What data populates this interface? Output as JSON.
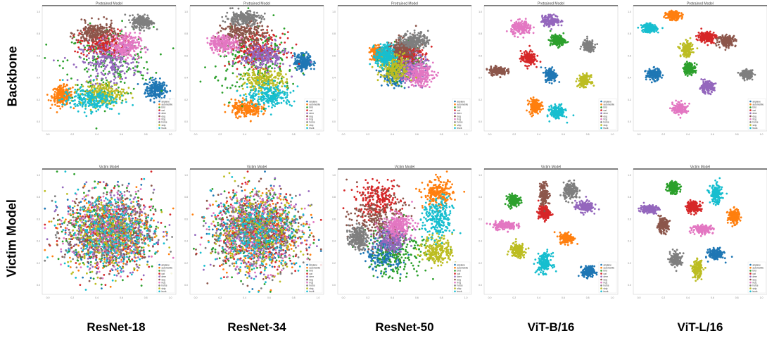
{
  "figure": {
    "row_labels": [
      "Backbone",
      "Victim Model"
    ],
    "column_labels": [
      "ResNet-18",
      "ResNet-34",
      "ResNet-50",
      "ViT-B/16",
      "ViT-L/16"
    ]
  },
  "legend": {
    "classes": [
      "airplane",
      "automobile",
      "bird",
      "cat",
      "deer",
      "dog",
      "frog",
      "horse",
      "ship",
      "truck"
    ],
    "colors": [
      "#1f77b4",
      "#ff7f0e",
      "#2ca02c",
      "#d62728",
      "#9467bd",
      "#8c564b",
      "#e377c2",
      "#7f7f7f",
      "#bcbd22",
      "#17becf"
    ]
  },
  "chart_data": [
    {
      "type": "scatter",
      "row": "Backbone",
      "model": "ResNet-18",
      "title": "Pretrained Model",
      "layout": "mixed",
      "x_ticks": [
        "0.0",
        "0.2",
        "0.4",
        "0.6",
        "0.8",
        "1.0"
      ],
      "y_ticks": [
        "0.0",
        "0.2",
        "0.4",
        "0.6",
        "0.8",
        "1.0"
      ],
      "clusters": [
        {
          "class": "airplane",
          "cx": 0.85,
          "cy": 0.33,
          "sx": 0.07,
          "sy": 0.07
        },
        {
          "class": "automobile",
          "cx": 0.15,
          "cy": 0.28,
          "sx": 0.07,
          "sy": 0.07
        },
        {
          "class": "bird",
          "cx": 0.5,
          "cy": 0.55,
          "sx": 0.3,
          "sy": 0.25
        },
        {
          "class": "cat",
          "cx": 0.45,
          "cy": 0.7,
          "sx": 0.15,
          "sy": 0.1
        },
        {
          "class": "deer",
          "cx": 0.5,
          "cy": 0.55,
          "sx": 0.2,
          "sy": 0.15
        },
        {
          "class": "dog",
          "cx": 0.4,
          "cy": 0.78,
          "sx": 0.13,
          "sy": 0.08
        },
        {
          "class": "frog",
          "cx": 0.62,
          "cy": 0.68,
          "sx": 0.1,
          "sy": 0.09
        },
        {
          "class": "horse",
          "cx": 0.75,
          "cy": 0.87,
          "sx": 0.07,
          "sy": 0.05
        },
        {
          "class": "ship",
          "cx": 0.45,
          "cy": 0.3,
          "sx": 0.15,
          "sy": 0.08
        },
        {
          "class": "truck",
          "cx": 0.35,
          "cy": 0.25,
          "sx": 0.18,
          "sy": 0.08
        }
      ]
    },
    {
      "type": "scatter",
      "row": "Backbone",
      "model": "ResNet-34",
      "title": "Pretrained Model",
      "layout": "mixed",
      "x_ticks": [
        "0.0",
        "0.2",
        "0.4",
        "0.6",
        "0.8",
        "1.0"
      ],
      "y_ticks": [
        "0.0",
        "0.2",
        "0.4",
        "0.6",
        "0.8",
        "1.0"
      ],
      "clusters": [
        {
          "class": "airplane",
          "cx": 0.85,
          "cy": 0.55,
          "sx": 0.06,
          "sy": 0.06
        },
        {
          "class": "automobile",
          "cx": 0.42,
          "cy": 0.18,
          "sx": 0.1,
          "sy": 0.06
        },
        {
          "class": "bird",
          "cx": 0.5,
          "cy": 0.55,
          "sx": 0.28,
          "sy": 0.25
        },
        {
          "class": "cat",
          "cx": 0.5,
          "cy": 0.65,
          "sx": 0.18,
          "sy": 0.12
        },
        {
          "class": "deer",
          "cx": 0.55,
          "cy": 0.6,
          "sx": 0.15,
          "sy": 0.1
        },
        {
          "class": "dog",
          "cx": 0.4,
          "cy": 0.78,
          "sx": 0.15,
          "sy": 0.08
        },
        {
          "class": "frog",
          "cx": 0.25,
          "cy": 0.7,
          "sx": 0.1,
          "sy": 0.06
        },
        {
          "class": "horse",
          "cx": 0.4,
          "cy": 0.9,
          "sx": 0.12,
          "sy": 0.05
        },
        {
          "class": "ship",
          "cx": 0.55,
          "cy": 0.4,
          "sx": 0.15,
          "sy": 0.08
        },
        {
          "class": "truck",
          "cx": 0.6,
          "cy": 0.28,
          "sx": 0.15,
          "sy": 0.08
        }
      ]
    },
    {
      "type": "scatter",
      "row": "Backbone",
      "model": "ResNet-50",
      "title": "Pretrained Model",
      "layout": "mixed",
      "x_ticks": [
        "0.0",
        "0.2",
        "0.4",
        "0.6",
        "0.8",
        "1.0"
      ],
      "y_ticks": [
        "0.0",
        "0.2",
        "0.4",
        "0.6",
        "0.8",
        "1.0"
      ],
      "clusters": [
        {
          "class": "airplane",
          "cx": 0.42,
          "cy": 0.45,
          "sx": 0.08,
          "sy": 0.08
        },
        {
          "class": "automobile",
          "cx": 0.3,
          "cy": 0.62,
          "sx": 0.05,
          "sy": 0.05
        },
        {
          "class": "bird",
          "cx": 0.5,
          "cy": 0.55,
          "sx": 0.12,
          "sy": 0.12
        },
        {
          "class": "cat",
          "cx": 0.52,
          "cy": 0.62,
          "sx": 0.1,
          "sy": 0.08
        },
        {
          "class": "deer",
          "cx": 0.55,
          "cy": 0.5,
          "sx": 0.1,
          "sy": 0.1
        },
        {
          "class": "dog",
          "cx": 0.48,
          "cy": 0.65,
          "sx": 0.1,
          "sy": 0.08
        },
        {
          "class": "frog",
          "cx": 0.6,
          "cy": 0.45,
          "sx": 0.1,
          "sy": 0.08
        },
        {
          "class": "horse",
          "cx": 0.58,
          "cy": 0.72,
          "sx": 0.09,
          "sy": 0.06
        },
        {
          "class": "ship",
          "cx": 0.42,
          "cy": 0.5,
          "sx": 0.1,
          "sy": 0.1
        },
        {
          "class": "truck",
          "cx": 0.35,
          "cy": 0.6,
          "sx": 0.06,
          "sy": 0.08
        }
      ]
    },
    {
      "type": "scatter",
      "row": "Backbone",
      "model": "ViT-B/16",
      "title": "Pretrained Model",
      "layout": "separated",
      "x_ticks": [
        "0.0",
        "0.2",
        "0.4",
        "0.6",
        "0.8",
        "1.0"
      ],
      "y_ticks": [
        "0.0",
        "0.2",
        "0.4",
        "0.6",
        "0.8",
        "1.0"
      ],
      "clusters": [
        {
          "class": "airplane",
          "cx": 0.5,
          "cy": 0.45,
          "sx": 0.04,
          "sy": 0.05
        },
        {
          "class": "automobile",
          "cx": 0.38,
          "cy": 0.2,
          "sx": 0.04,
          "sy": 0.05
        },
        {
          "class": "bird",
          "cx": 0.55,
          "cy": 0.72,
          "sx": 0.05,
          "sy": 0.04
        },
        {
          "class": "cat",
          "cx": 0.33,
          "cy": 0.58,
          "sx": 0.05,
          "sy": 0.05
        },
        {
          "class": "deer",
          "cx": 0.5,
          "cy": 0.88,
          "sx": 0.06,
          "sy": 0.04
        },
        {
          "class": "dog",
          "cx": 0.1,
          "cy": 0.48,
          "sx": 0.06,
          "sy": 0.03
        },
        {
          "class": "frog",
          "cx": 0.28,
          "cy": 0.82,
          "sx": 0.07,
          "sy": 0.05
        },
        {
          "class": "horse",
          "cx": 0.78,
          "cy": 0.68,
          "sx": 0.04,
          "sy": 0.04
        },
        {
          "class": "ship",
          "cx": 0.75,
          "cy": 0.4,
          "sx": 0.04,
          "sy": 0.04
        },
        {
          "class": "truck",
          "cx": 0.55,
          "cy": 0.15,
          "sx": 0.05,
          "sy": 0.05
        }
      ]
    },
    {
      "type": "scatter",
      "row": "Backbone",
      "model": "ViT-L/16",
      "title": "Pretrained Model",
      "layout": "separated",
      "x_ticks": [
        "0.0",
        "0.2",
        "0.4",
        "0.6",
        "0.8",
        "1.0"
      ],
      "y_ticks": [
        "0.0",
        "0.2",
        "0.4",
        "0.6",
        "0.8",
        "1.0"
      ],
      "clusters": [
        {
          "class": "airplane",
          "cx": 0.15,
          "cy": 0.45,
          "sx": 0.05,
          "sy": 0.04
        },
        {
          "class": "automobile",
          "cx": 0.3,
          "cy": 0.92,
          "sx": 0.05,
          "sy": 0.03
        },
        {
          "class": "bird",
          "cx": 0.42,
          "cy": 0.5,
          "sx": 0.04,
          "sy": 0.04
        },
        {
          "class": "cat",
          "cx": 0.55,
          "cy": 0.75,
          "sx": 0.06,
          "sy": 0.04
        },
        {
          "class": "deer",
          "cx": 0.55,
          "cy": 0.35,
          "sx": 0.05,
          "sy": 0.04
        },
        {
          "class": "dog",
          "cx": 0.7,
          "cy": 0.72,
          "sx": 0.06,
          "sy": 0.04
        },
        {
          "class": "frog",
          "cx": 0.35,
          "cy": 0.18,
          "sx": 0.05,
          "sy": 0.04
        },
        {
          "class": "horse",
          "cx": 0.85,
          "cy": 0.45,
          "sx": 0.04,
          "sy": 0.03
        },
        {
          "class": "ship",
          "cx": 0.4,
          "cy": 0.65,
          "sx": 0.04,
          "sy": 0.05
        },
        {
          "class": "truck",
          "cx": 0.12,
          "cy": 0.82,
          "sx": 0.05,
          "sy": 0.03
        }
      ]
    },
    {
      "type": "scatter",
      "row": "Victim Model",
      "model": "ResNet-18",
      "title": "Victim Model",
      "layout": "mixed",
      "x_ticks": [
        "0.0",
        "0.2",
        "0.4",
        "0.6",
        "0.8",
        "1.0"
      ],
      "y_ticks": [
        "0.0",
        "0.2",
        "0.4",
        "0.6",
        "0.8",
        "1.0"
      ],
      "clusters": [
        {
          "class": "airplane",
          "cx": 0.5,
          "cy": 0.5,
          "sx": 0.3,
          "sy": 0.28
        },
        {
          "class": "automobile",
          "cx": 0.5,
          "cy": 0.5,
          "sx": 0.3,
          "sy": 0.28
        },
        {
          "class": "bird",
          "cx": 0.5,
          "cy": 0.5,
          "sx": 0.3,
          "sy": 0.28
        },
        {
          "class": "cat",
          "cx": 0.5,
          "cy": 0.5,
          "sx": 0.3,
          "sy": 0.28
        },
        {
          "class": "deer",
          "cx": 0.5,
          "cy": 0.5,
          "sx": 0.3,
          "sy": 0.28
        },
        {
          "class": "dog",
          "cx": 0.5,
          "cy": 0.5,
          "sx": 0.3,
          "sy": 0.28
        },
        {
          "class": "frog",
          "cx": 0.5,
          "cy": 0.5,
          "sx": 0.3,
          "sy": 0.28
        },
        {
          "class": "horse",
          "cx": 0.5,
          "cy": 0.5,
          "sx": 0.3,
          "sy": 0.28
        },
        {
          "class": "ship",
          "cx": 0.5,
          "cy": 0.5,
          "sx": 0.3,
          "sy": 0.28
        },
        {
          "class": "truck",
          "cx": 0.5,
          "cy": 0.5,
          "sx": 0.3,
          "sy": 0.28
        }
      ]
    },
    {
      "type": "scatter",
      "row": "Victim Model",
      "model": "ResNet-34",
      "title": "Victim Model",
      "layout": "mixed",
      "x_ticks": [
        "0.0",
        "0.2",
        "0.4",
        "0.6",
        "0.8",
        "1.0"
      ],
      "y_ticks": [
        "0.0",
        "0.2",
        "0.4",
        "0.6",
        "0.8",
        "1.0"
      ],
      "clusters": [
        {
          "class": "airplane",
          "cx": 0.5,
          "cy": 0.5,
          "sx": 0.3,
          "sy": 0.28
        },
        {
          "class": "automobile",
          "cx": 0.5,
          "cy": 0.5,
          "sx": 0.3,
          "sy": 0.28
        },
        {
          "class": "bird",
          "cx": 0.5,
          "cy": 0.5,
          "sx": 0.3,
          "sy": 0.28
        },
        {
          "class": "cat",
          "cx": 0.5,
          "cy": 0.5,
          "sx": 0.3,
          "sy": 0.28
        },
        {
          "class": "deer",
          "cx": 0.5,
          "cy": 0.5,
          "sx": 0.3,
          "sy": 0.28
        },
        {
          "class": "dog",
          "cx": 0.5,
          "cy": 0.5,
          "sx": 0.3,
          "sy": 0.28
        },
        {
          "class": "frog",
          "cx": 0.5,
          "cy": 0.5,
          "sx": 0.3,
          "sy": 0.28
        },
        {
          "class": "horse",
          "cx": 0.5,
          "cy": 0.5,
          "sx": 0.3,
          "sy": 0.28
        },
        {
          "class": "ship",
          "cx": 0.5,
          "cy": 0.5,
          "sx": 0.3,
          "sy": 0.28
        },
        {
          "class": "truck",
          "cx": 0.5,
          "cy": 0.5,
          "sx": 0.3,
          "sy": 0.28
        }
      ]
    },
    {
      "type": "scatter",
      "row": "Victim Model",
      "model": "ResNet-50",
      "title": "Victim Model",
      "layout": "mixed",
      "x_ticks": [
        "0.0",
        "0.2",
        "0.4",
        "0.6",
        "0.8",
        "1.0"
      ],
      "y_ticks": [
        "0.0",
        "0.2",
        "0.4",
        "0.6",
        "0.8",
        "1.0"
      ],
      "clusters": [
        {
          "class": "airplane",
          "cx": 0.35,
          "cy": 0.32,
          "sx": 0.12,
          "sy": 0.12
        },
        {
          "class": "automobile",
          "cx": 0.75,
          "cy": 0.8,
          "sx": 0.1,
          "sy": 0.1
        },
        {
          "class": "bird",
          "cx": 0.45,
          "cy": 0.35,
          "sx": 0.2,
          "sy": 0.2
        },
        {
          "class": "cat",
          "cx": 0.3,
          "cy": 0.75,
          "sx": 0.15,
          "sy": 0.12
        },
        {
          "class": "deer",
          "cx": 0.4,
          "cy": 0.45,
          "sx": 0.1,
          "sy": 0.1
        },
        {
          "class": "dog",
          "cx": 0.3,
          "cy": 0.6,
          "sx": 0.18,
          "sy": 0.18
        },
        {
          "class": "frog",
          "cx": 0.45,
          "cy": 0.55,
          "sx": 0.1,
          "sy": 0.08
        },
        {
          "class": "horse",
          "cx": 0.15,
          "cy": 0.45,
          "sx": 0.06,
          "sy": 0.08
        },
        {
          "class": "ship",
          "cx": 0.75,
          "cy": 0.35,
          "sx": 0.1,
          "sy": 0.1
        },
        {
          "class": "truck",
          "cx": 0.75,
          "cy": 0.6,
          "sx": 0.1,
          "sy": 0.15
        }
      ]
    },
    {
      "type": "scatter",
      "row": "Victim Model",
      "model": "ViT-B/16",
      "title": "Victim Model",
      "layout": "separated",
      "x_ticks": [
        "0.0",
        "0.2",
        "0.4",
        "0.6",
        "0.8",
        "1.0"
      ],
      "y_ticks": [
        "0.0",
        "0.2",
        "0.4",
        "0.6",
        "0.8",
        "1.0"
      ],
      "clusters": [
        {
          "class": "airplane",
          "cx": 0.78,
          "cy": 0.18,
          "sx": 0.04,
          "sy": 0.04
        },
        {
          "class": "automobile",
          "cx": 0.62,
          "cy": 0.45,
          "sx": 0.05,
          "sy": 0.04
        },
        {
          "class": "bird",
          "cx": 0.22,
          "cy": 0.75,
          "sx": 0.04,
          "sy": 0.04
        },
        {
          "class": "cat",
          "cx": 0.45,
          "cy": 0.65,
          "sx": 0.04,
          "sy": 0.05
        },
        {
          "class": "deer",
          "cx": 0.75,
          "cy": 0.7,
          "sx": 0.06,
          "sy": 0.04
        },
        {
          "class": "dog",
          "cx": 0.45,
          "cy": 0.8,
          "sx": 0.03,
          "sy": 0.08
        },
        {
          "class": "frog",
          "cx": 0.15,
          "cy": 0.55,
          "sx": 0.08,
          "sy": 0.03
        },
        {
          "class": "horse",
          "cx": 0.65,
          "cy": 0.82,
          "sx": 0.05,
          "sy": 0.06
        },
        {
          "class": "ship",
          "cx": 0.25,
          "cy": 0.35,
          "sx": 0.05,
          "sy": 0.05
        },
        {
          "class": "truck",
          "cx": 0.45,
          "cy": 0.25,
          "sx": 0.05,
          "sy": 0.07
        }
      ]
    },
    {
      "type": "scatter",
      "row": "Victim Model",
      "model": "ViT-L/16",
      "title": "Victim Model",
      "layout": "separated",
      "x_ticks": [
        "0.0",
        "0.2",
        "0.4",
        "0.6",
        "0.8",
        "1.0"
      ],
      "y_ticks": [
        "0.0",
        "0.2",
        "0.4",
        "0.6",
        "0.8",
        "1.0"
      ],
      "clusters": [
        {
          "class": "airplane",
          "cx": 0.62,
          "cy": 0.32,
          "sx": 0.05,
          "sy": 0.04
        },
        {
          "class": "automobile",
          "cx": 0.75,
          "cy": 0.62,
          "sx": 0.04,
          "sy": 0.05
        },
        {
          "class": "bird",
          "cx": 0.3,
          "cy": 0.85,
          "sx": 0.04,
          "sy": 0.04
        },
        {
          "class": "cat",
          "cx": 0.45,
          "cy": 0.7,
          "sx": 0.05,
          "sy": 0.04
        },
        {
          "class": "deer",
          "cx": 0.12,
          "cy": 0.68,
          "sx": 0.06,
          "sy": 0.03
        },
        {
          "class": "dog",
          "cx": 0.22,
          "cy": 0.55,
          "sx": 0.04,
          "sy": 0.05
        },
        {
          "class": "frog",
          "cx": 0.52,
          "cy": 0.52,
          "sx": 0.07,
          "sy": 0.03
        },
        {
          "class": "horse",
          "cx": 0.32,
          "cy": 0.28,
          "sx": 0.04,
          "sy": 0.05
        },
        {
          "class": "ship",
          "cx": 0.48,
          "cy": 0.2,
          "sx": 0.03,
          "sy": 0.06
        },
        {
          "class": "truck",
          "cx": 0.62,
          "cy": 0.8,
          "sx": 0.04,
          "sy": 0.07
        }
      ]
    }
  ]
}
